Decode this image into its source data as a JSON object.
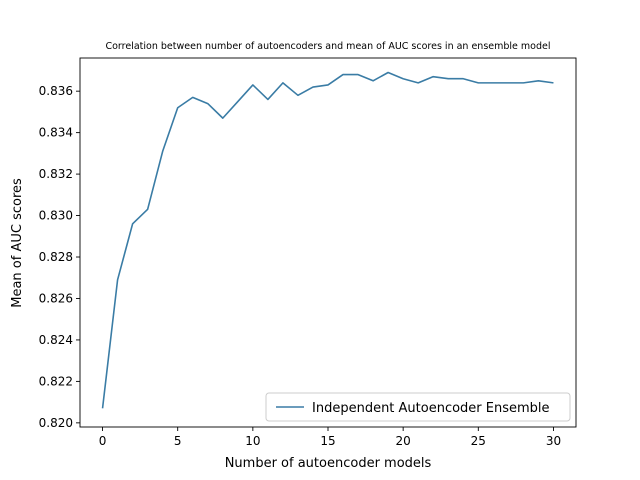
{
  "chart_data": {
    "type": "line",
    "title": "Correlation between number of autoencoders and mean of AUC scores in an ensemble model",
    "xlabel": "Number of autoencoder models",
    "ylabel": "Mean of AUC scores",
    "xlim": [
      -1.5,
      31.5
    ],
    "ylim": [
      0.8198,
      0.8376
    ],
    "xticks": [
      0,
      5,
      10,
      15,
      20,
      25,
      30
    ],
    "xtick_labels": [
      "0",
      "5",
      "10",
      "15",
      "20",
      "25",
      "30"
    ],
    "yticks": [
      0.82,
      0.822,
      0.824,
      0.826,
      0.828,
      0.83,
      0.832,
      0.834,
      0.836
    ],
    "ytick_labels": [
      "0.820",
      "0.822",
      "0.824",
      "0.826",
      "0.828",
      "0.830",
      "0.832",
      "0.834",
      "0.836"
    ],
    "grid": false,
    "legend_position": "lower-right",
    "line_color": "#3a7ca5",
    "series": [
      {
        "name": "Independent Autoencoder Ensemble",
        "x": [
          0,
          1,
          2,
          3,
          4,
          5,
          6,
          7,
          8,
          9,
          10,
          11,
          12,
          13,
          14,
          15,
          16,
          17,
          18,
          19,
          20,
          21,
          22,
          23,
          24,
          25,
          26,
          27,
          28,
          29,
          30
        ],
        "values": [
          0.8207,
          0.8269,
          0.8296,
          0.8303,
          0.8331,
          0.8352,
          0.8357,
          0.8354,
          0.8347,
          0.8355,
          0.8363,
          0.8356,
          0.8364,
          0.8358,
          0.8362,
          0.8363,
          0.8368,
          0.8368,
          0.8365,
          0.8369,
          0.8366,
          0.8364,
          0.8367,
          0.8366,
          0.8366,
          0.8364,
          0.8364,
          0.8364,
          0.8364,
          0.8365,
          0.8364
        ]
      }
    ]
  }
}
